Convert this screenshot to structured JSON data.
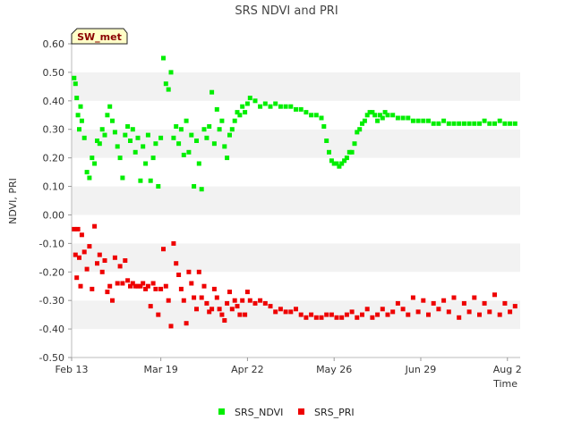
{
  "chart_data": {
    "type": "scatter",
    "title": "SRS NDVI and PRI",
    "xlabel": "Time",
    "ylabel": "NDVI, PRI",
    "site_badge": "SW_met",
    "ylim": [
      -0.5,
      0.6
    ],
    "yticks": [
      -0.5,
      -0.4,
      -0.3,
      -0.2,
      -0.1,
      0.0,
      0.1,
      0.2,
      0.3,
      0.4,
      0.5,
      0.6
    ],
    "ytick_labels": [
      "-0.50",
      "-0.40",
      "-0.30",
      "-0.20",
      "-0.10",
      "0.00",
      "0.10",
      "0.20",
      "0.30",
      "0.40",
      "0.50",
      "0.60"
    ],
    "xlim_days": [
      0,
      176
    ],
    "xticks": [
      {
        "day": 0,
        "label": "Feb 13"
      },
      {
        "day": 35,
        "label": "Mar 19"
      },
      {
        "day": 69,
        "label": "Apr 22"
      },
      {
        "day": 103,
        "label": "May 26"
      },
      {
        "day": 137,
        "label": "Jun 29"
      },
      {
        "day": 171,
        "label": "Aug 2"
      }
    ],
    "grid": "horizontal-bands",
    "legend_position": "bottom",
    "series": [
      {
        "name": "SRS_NDVI",
        "color": "#00ee00",
        "points": [
          [
            1,
            0.48
          ],
          [
            1.5,
            0.46
          ],
          [
            2,
            0.41
          ],
          [
            2.5,
            0.35
          ],
          [
            3,
            0.3
          ],
          [
            3.5,
            0.38
          ],
          [
            4,
            0.33
          ],
          [
            5,
            0.27
          ],
          [
            6,
            0.15
          ],
          [
            7,
            0.13
          ],
          [
            8,
            0.2
          ],
          [
            9,
            0.18
          ],
          [
            10,
            0.26
          ],
          [
            11,
            0.25
          ],
          [
            12,
            0.3
          ],
          [
            13,
            0.28
          ],
          [
            14,
            0.35
          ],
          [
            15,
            0.38
          ],
          [
            16,
            0.33
          ],
          [
            17,
            0.29
          ],
          [
            18,
            0.24
          ],
          [
            19,
            0.2
          ],
          [
            20,
            0.13
          ],
          [
            21,
            0.28
          ],
          [
            22,
            0.31
          ],
          [
            23,
            0.26
          ],
          [
            24,
            0.3
          ],
          [
            25,
            0.22
          ],
          [
            26,
            0.27
          ],
          [
            27,
            0.12
          ],
          [
            28,
            0.24
          ],
          [
            29,
            0.18
          ],
          [
            30,
            0.28
          ],
          [
            31,
            0.12
          ],
          [
            32,
            0.2
          ],
          [
            33,
            0.25
          ],
          [
            34,
            0.1
          ],
          [
            35,
            0.27
          ],
          [
            36,
            0.55
          ],
          [
            37,
            0.46
          ],
          [
            38,
            0.44
          ],
          [
            39,
            0.5
          ],
          [
            40,
            0.27
          ],
          [
            41,
            0.31
          ],
          [
            42,
            0.25
          ],
          [
            43,
            0.3
          ],
          [
            44,
            0.21
          ],
          [
            45,
            0.33
          ],
          [
            46,
            0.22
          ],
          [
            47,
            0.28
          ],
          [
            48,
            0.1
          ],
          [
            49,
            0.26
          ],
          [
            50,
            0.18
          ],
          [
            51,
            0.09
          ],
          [
            52,
            0.3
          ],
          [
            53,
            0.27
          ],
          [
            54,
            0.31
          ],
          [
            55,
            0.43
          ],
          [
            56,
            0.25
          ],
          [
            57,
            0.37
          ],
          [
            58,
            0.3
          ],
          [
            59,
            0.33
          ],
          [
            60,
            0.24
          ],
          [
            61,
            0.2
          ],
          [
            62,
            0.28
          ],
          [
            63,
            0.3
          ],
          [
            64,
            0.33
          ],
          [
            65,
            0.36
          ],
          [
            66,
            0.35
          ],
          [
            67,
            0.38
          ],
          [
            68,
            0.36
          ],
          [
            69,
            0.39
          ],
          [
            70,
            0.41
          ],
          [
            72,
            0.4
          ],
          [
            74,
            0.38
          ],
          [
            76,
            0.39
          ],
          [
            78,
            0.38
          ],
          [
            80,
            0.39
          ],
          [
            82,
            0.38
          ],
          [
            84,
            0.38
          ],
          [
            86,
            0.38
          ],
          [
            88,
            0.37
          ],
          [
            90,
            0.37
          ],
          [
            92,
            0.36
          ],
          [
            94,
            0.35
          ],
          [
            96,
            0.35
          ],
          [
            98,
            0.34
          ],
          [
            99,
            0.31
          ],
          [
            100,
            0.26
          ],
          [
            101,
            0.22
          ],
          [
            102,
            0.19
          ],
          [
            103,
            0.18
          ],
          [
            104,
            0.18
          ],
          [
            105,
            0.17
          ],
          [
            106,
            0.18
          ],
          [
            107,
            0.19
          ],
          [
            108,
            0.2
          ],
          [
            109,
            0.22
          ],
          [
            110,
            0.22
          ],
          [
            111,
            0.25
          ],
          [
            112,
            0.29
          ],
          [
            113,
            0.3
          ],
          [
            114,
            0.32
          ],
          [
            115,
            0.33
          ],
          [
            116,
            0.35
          ],
          [
            117,
            0.36
          ],
          [
            118,
            0.36
          ],
          [
            119,
            0.35
          ],
          [
            120,
            0.33
          ],
          [
            121,
            0.35
          ],
          [
            122,
            0.34
          ],
          [
            123,
            0.36
          ],
          [
            124,
            0.35
          ],
          [
            126,
            0.35
          ],
          [
            128,
            0.34
          ],
          [
            130,
            0.34
          ],
          [
            132,
            0.34
          ],
          [
            134,
            0.33
          ],
          [
            136,
            0.33
          ],
          [
            138,
            0.33
          ],
          [
            140,
            0.33
          ],
          [
            142,
            0.32
          ],
          [
            144,
            0.32
          ],
          [
            146,
            0.33
          ],
          [
            148,
            0.32
          ],
          [
            150,
            0.32
          ],
          [
            152,
            0.32
          ],
          [
            154,
            0.32
          ],
          [
            156,
            0.32
          ],
          [
            158,
            0.32
          ],
          [
            160,
            0.32
          ],
          [
            162,
            0.33
          ],
          [
            164,
            0.32
          ],
          [
            166,
            0.32
          ],
          [
            168,
            0.33
          ],
          [
            170,
            0.32
          ],
          [
            172,
            0.32
          ],
          [
            174,
            0.32
          ]
        ]
      },
      {
        "name": "SRS_PRI",
        "color": "#ee0000",
        "points": [
          [
            1,
            -0.05
          ],
          [
            1.5,
            -0.14
          ],
          [
            2,
            -0.22
          ],
          [
            2.5,
            -0.05
          ],
          [
            3,
            -0.15
          ],
          [
            3.5,
            -0.25
          ],
          [
            4,
            -0.07
          ],
          [
            5,
            -0.13
          ],
          [
            6,
            -0.19
          ],
          [
            7,
            -0.11
          ],
          [
            8,
            -0.26
          ],
          [
            9,
            -0.04
          ],
          [
            10,
            -0.17
          ],
          [
            11,
            -0.14
          ],
          [
            12,
            -0.2
          ],
          [
            13,
            -0.16
          ],
          [
            14,
            -0.27
          ],
          [
            15,
            -0.25
          ],
          [
            16,
            -0.3
          ],
          [
            17,
            -0.15
          ],
          [
            18,
            -0.24
          ],
          [
            19,
            -0.18
          ],
          [
            20,
            -0.24
          ],
          [
            21,
            -0.16
          ],
          [
            22,
            -0.23
          ],
          [
            23,
            -0.25
          ],
          [
            24,
            -0.24
          ],
          [
            25,
            -0.25
          ],
          [
            26,
            -0.25
          ],
          [
            27,
            -0.25
          ],
          [
            28,
            -0.24
          ],
          [
            29,
            -0.26
          ],
          [
            30,
            -0.25
          ],
          [
            31,
            -0.32
          ],
          [
            32,
            -0.24
          ],
          [
            33,
            -0.26
          ],
          [
            34,
            -0.35
          ],
          [
            35,
            -0.26
          ],
          [
            36,
            -0.12
          ],
          [
            37,
            -0.25
          ],
          [
            38,
            -0.3
          ],
          [
            39,
            -0.39
          ],
          [
            40,
            -0.1
          ],
          [
            41,
            -0.17
          ],
          [
            42,
            -0.21
          ],
          [
            43,
            -0.26
          ],
          [
            44,
            -0.3
          ],
          [
            45,
            -0.38
          ],
          [
            46,
            -0.2
          ],
          [
            47,
            -0.24
          ],
          [
            48,
            -0.29
          ],
          [
            49,
            -0.33
          ],
          [
            50,
            -0.2
          ],
          [
            51,
            -0.29
          ],
          [
            52,
            -0.25
          ],
          [
            53,
            -0.31
          ],
          [
            54,
            -0.34
          ],
          [
            55,
            -0.33
          ],
          [
            56,
            -0.26
          ],
          [
            57,
            -0.29
          ],
          [
            58,
            -0.33
          ],
          [
            59,
            -0.35
          ],
          [
            60,
            -0.37
          ],
          [
            61,
            -0.31
          ],
          [
            62,
            -0.27
          ],
          [
            63,
            -0.33
          ],
          [
            64,
            -0.3
          ],
          [
            65,
            -0.32
          ],
          [
            66,
            -0.35
          ],
          [
            67,
            -0.3
          ],
          [
            68,
            -0.35
          ],
          [
            69,
            -0.27
          ],
          [
            70,
            -0.3
          ],
          [
            72,
            -0.31
          ],
          [
            74,
            -0.3
          ],
          [
            76,
            -0.31
          ],
          [
            78,
            -0.32
          ],
          [
            80,
            -0.34
          ],
          [
            82,
            -0.33
          ],
          [
            84,
            -0.34
          ],
          [
            86,
            -0.34
          ],
          [
            88,
            -0.33
          ],
          [
            90,
            -0.35
          ],
          [
            92,
            -0.36
          ],
          [
            94,
            -0.35
          ],
          [
            96,
            -0.36
          ],
          [
            98,
            -0.36
          ],
          [
            100,
            -0.35
          ],
          [
            102,
            -0.35
          ],
          [
            104,
            -0.36
          ],
          [
            106,
            -0.36
          ],
          [
            108,
            -0.35
          ],
          [
            110,
            -0.34
          ],
          [
            112,
            -0.36
          ],
          [
            114,
            -0.35
          ],
          [
            116,
            -0.33
          ],
          [
            118,
            -0.36
          ],
          [
            120,
            -0.35
          ],
          [
            122,
            -0.33
          ],
          [
            124,
            -0.35
          ],
          [
            126,
            -0.34
          ],
          [
            128,
            -0.31
          ],
          [
            130,
            -0.33
          ],
          [
            132,
            -0.35
          ],
          [
            134,
            -0.29
          ],
          [
            136,
            -0.34
          ],
          [
            138,
            -0.3
          ],
          [
            140,
            -0.35
          ],
          [
            142,
            -0.31
          ],
          [
            144,
            -0.33
          ],
          [
            146,
            -0.3
          ],
          [
            148,
            -0.34
          ],
          [
            150,
            -0.29
          ],
          [
            152,
            -0.36
          ],
          [
            154,
            -0.31
          ],
          [
            156,
            -0.34
          ],
          [
            158,
            -0.29
          ],
          [
            160,
            -0.35
          ],
          [
            162,
            -0.31
          ],
          [
            164,
            -0.34
          ],
          [
            166,
            -0.28
          ],
          [
            168,
            -0.35
          ],
          [
            170,
            -0.31
          ],
          [
            172,
            -0.34
          ],
          [
            174,
            -0.32
          ]
        ]
      }
    ]
  }
}
